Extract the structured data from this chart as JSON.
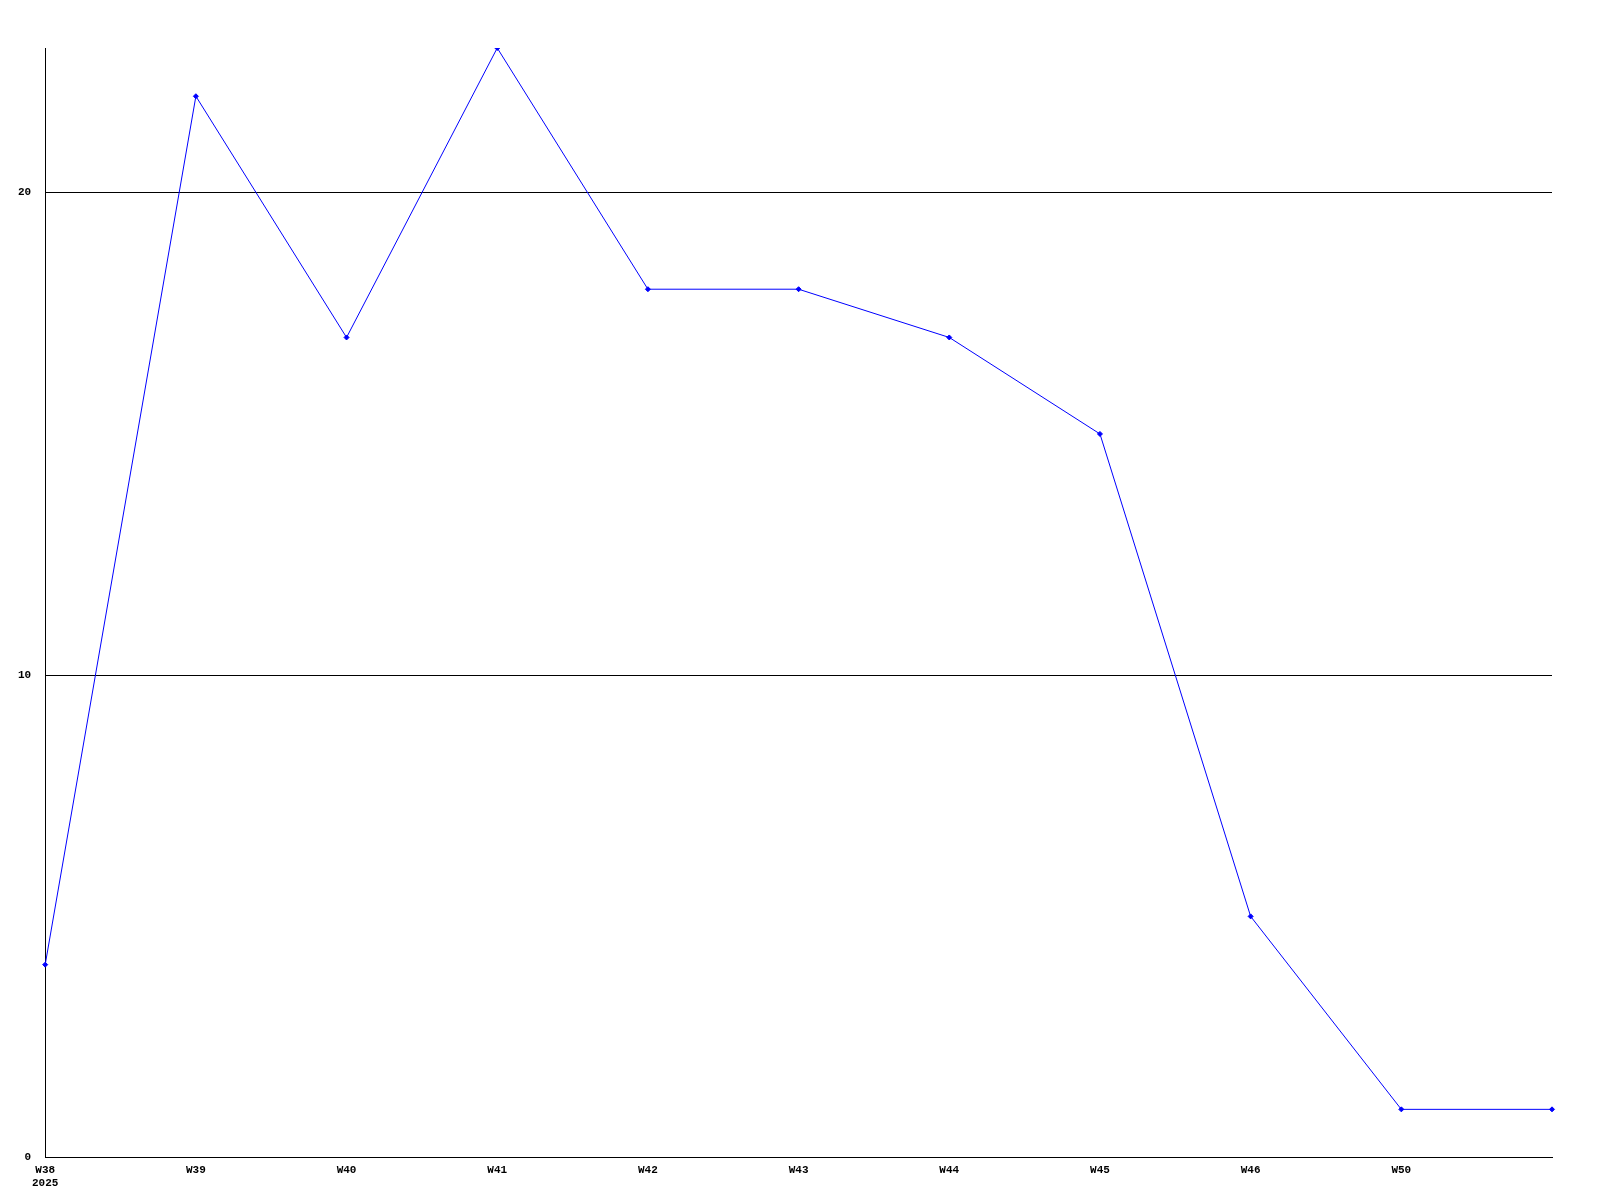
{
  "chart_data": {
    "type": "line",
    "categories": [
      "W38\n2025",
      "W39",
      "W40",
      "W41",
      "W42",
      "W43",
      "W44",
      "W45",
      "W46",
      "W50",
      null
    ],
    "values": [
      4,
      22,
      17,
      23,
      18,
      18,
      17,
      15,
      5,
      1,
      1
    ],
    "color": "#0000ff",
    "ylim": [
      0,
      23
    ],
    "yticks": [
      0,
      10,
      20
    ],
    "grid": "y",
    "marker": "diamond"
  }
}
